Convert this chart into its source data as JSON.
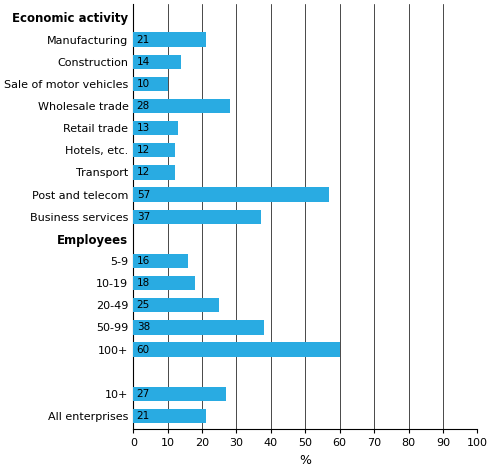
{
  "categories": [
    "Economic activity",
    "Manufacturing",
    "Construction",
    "Sale of motor vehicles",
    "Wholesale trade",
    "Retail trade",
    "Hotels, etc.",
    "Transport",
    "Post and telecom",
    "Business services",
    "Employees",
    "5-9",
    "10-19",
    "20-49",
    "50-99",
    "100+",
    "",
    "10+",
    "All enterprises"
  ],
  "values": [
    null,
    21,
    14,
    10,
    28,
    13,
    12,
    12,
    57,
    37,
    null,
    16,
    18,
    25,
    38,
    60,
    null,
    27,
    21
  ],
  "bar_color": "#29abe2",
  "xlabel": "%",
  "xlim": [
    0,
    100
  ],
  "xticks": [
    0,
    10,
    20,
    30,
    40,
    50,
    60,
    70,
    80,
    90,
    100
  ],
  "bold_labels": [
    "Employees",
    "Economic activity"
  ],
  "figsize": [
    4.92,
    4.71
  ],
  "dpi": 100
}
